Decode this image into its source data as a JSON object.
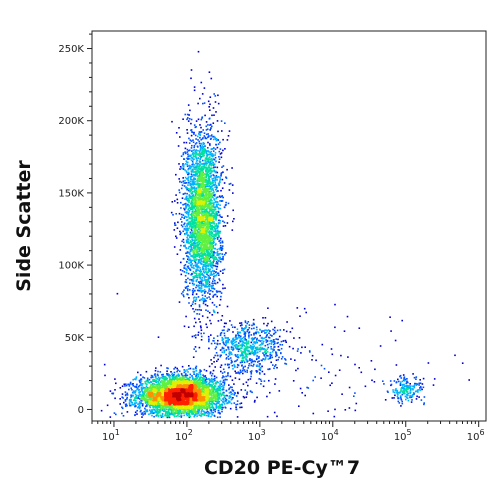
{
  "chart_data": {
    "type": "scatter",
    "subtype": "flow-cytometry-density-dot-plot",
    "title": "",
    "xlabel": "CD20 PE-Cy™7",
    "ylabel": "Side Scatter",
    "x_scale": "log",
    "xlim": [
      5,
      1260000
    ],
    "ylim": [
      -8000,
      262144
    ],
    "x_ticks": [
      {
        "value": 10,
        "base": "10",
        "exp": "1"
      },
      {
        "value": 100,
        "base": "10",
        "exp": "2"
      },
      {
        "value": 1000,
        "base": "10",
        "exp": "3"
      },
      {
        "value": 10000,
        "base": "10",
        "exp": "4"
      },
      {
        "value": 100000,
        "base": "10",
        "exp": "5"
      },
      {
        "value": 1000000,
        "base": "10",
        "exp": "6"
      }
    ],
    "y_ticks": [
      {
        "value": 0,
        "label": "0"
      },
      {
        "value": 50000,
        "label": "50K"
      },
      {
        "value": 100000,
        "label": "100K"
      },
      {
        "value": 150000,
        "label": "150K"
      },
      {
        "value": 200000,
        "label": "200K"
      },
      {
        "value": 250000,
        "label": "250K"
      }
    ],
    "grid": false,
    "legend": "none",
    "colormap": [
      "#0000d0",
      "#0050ff",
      "#00b0ff",
      "#00e0a0",
      "#60f040",
      "#e0f000",
      "#ff9000",
      "#ff2000",
      "#c00000"
    ],
    "populations": [
      {
        "x_center": 80,
        "y_center": 10000,
        "x_log_sd": 0.3,
        "y_sd": 7000,
        "count": 4200
      },
      {
        "x_center": 160,
        "y_center": 135000,
        "x_log_sd": 0.13,
        "y_sd": 30000,
        "count": 3200
      },
      {
        "x_center": 700,
        "y_center": 43000,
        "x_log_sd": 0.25,
        "y_sd": 9000,
        "count": 650
      },
      {
        "x_center": 100000,
        "y_center": 14000,
        "x_log_sd": 0.12,
        "y_sd": 4500,
        "count": 180
      },
      {
        "x_center": 4000,
        "y_center": 20000,
        "x_log_sd": 1.0,
        "y_sd": 25000,
        "count": 150
      }
    ]
  }
}
